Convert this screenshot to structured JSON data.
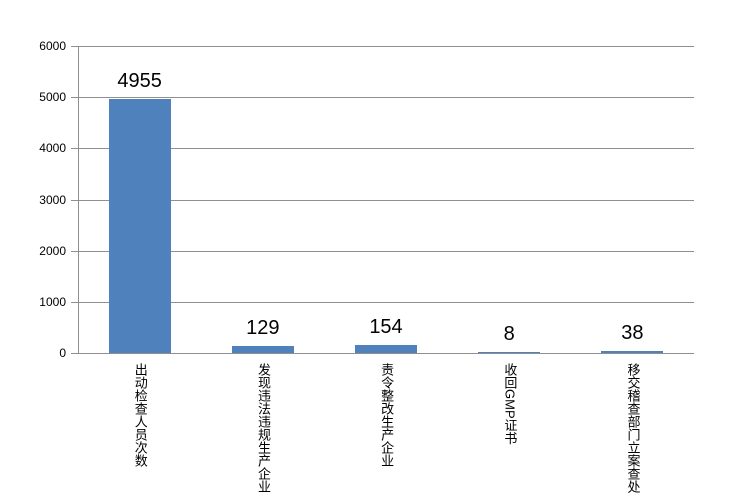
{
  "chart_data": {
    "type": "bar",
    "categories": [
      "出动检查人员次数",
      "发现违法违规生产企业",
      "责令整改生产企业",
      "收回GMP证书",
      "移交稽查部门立案查处"
    ],
    "values": [
      4955,
      129,
      154,
      8,
      38
    ],
    "data_labels": [
      "4955",
      "129",
      "154",
      "8",
      "38"
    ],
    "title": "",
    "xlabel": "",
    "ylabel": "",
    "ylim": [
      0,
      6000
    ],
    "yticks": [
      0,
      1000,
      2000,
      3000,
      4000,
      5000,
      6000
    ],
    "ytick_labels": [
      "0",
      "1000",
      "2000",
      "3000",
      "4000",
      "5000",
      "6000"
    ],
    "grid": true,
    "legend": false,
    "legend_position": "none",
    "bar_color": "#4F81BD",
    "gridline_color": "#8F8F8F",
    "axis_color": "#8F8F8F",
    "text_color": "#000000",
    "background_color": "#FFFFFF"
  }
}
